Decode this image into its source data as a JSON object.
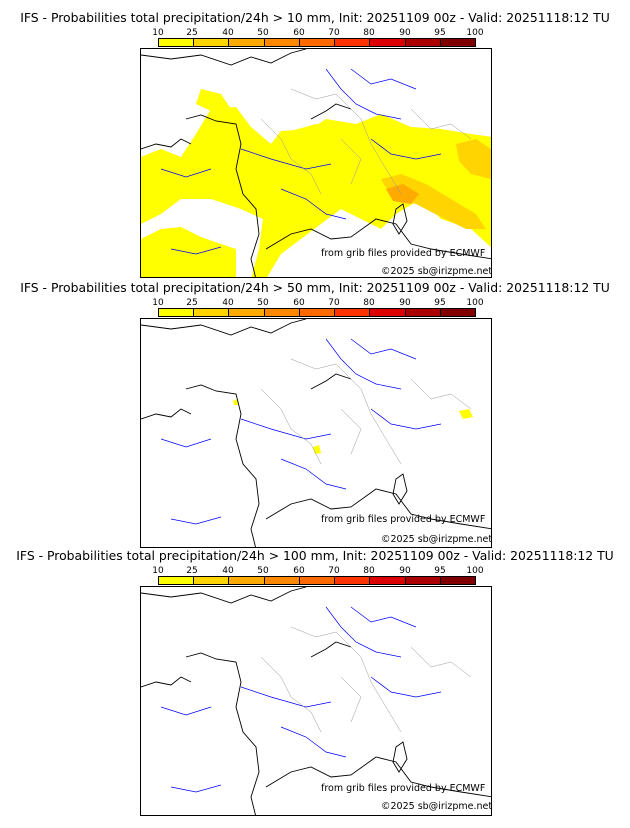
{
  "panels": [
    {
      "title": "IFS - Probabilities total precipitation/24h > 10 mm, Init: 20251109 00z - Valid: 20251118:12 TU",
      "credit_data": "from grib files provided by ECMWF",
      "credit_site": "©2025 sb@irizpme.net"
    },
    {
      "title": "IFS - Probabilities total precipitation/24h > 50 mm, Init: 20251109 00z - Valid: 20251118:12 TU",
      "credit_data": "from grib files provided by ECMWF",
      "credit_site": "©2025 sb@irizpme.net"
    },
    {
      "title": "IFS - Probabilities total precipitation/24h > 100 mm, Init: 20251109 00z - Valid: 20251118:12 TU",
      "credit_data": "from grib files provided by ECMWF",
      "credit_site": "©2025 sb@irizpme.net"
    }
  ],
  "colorbar": {
    "levels": [
      "10",
      "25",
      "40",
      "50",
      "60",
      "70",
      "80",
      "90",
      "95",
      "100"
    ],
    "colors": [
      "#ffff00",
      "#ffd400",
      "#ffaa00",
      "#ff8800",
      "#ff6a00",
      "#ff3300",
      "#dd0000",
      "#aa0000",
      "#800000"
    ]
  },
  "colors": {
    "coast": "#000000",
    "rivers": "#0000ff",
    "borders": "#aaaaaa"
  }
}
